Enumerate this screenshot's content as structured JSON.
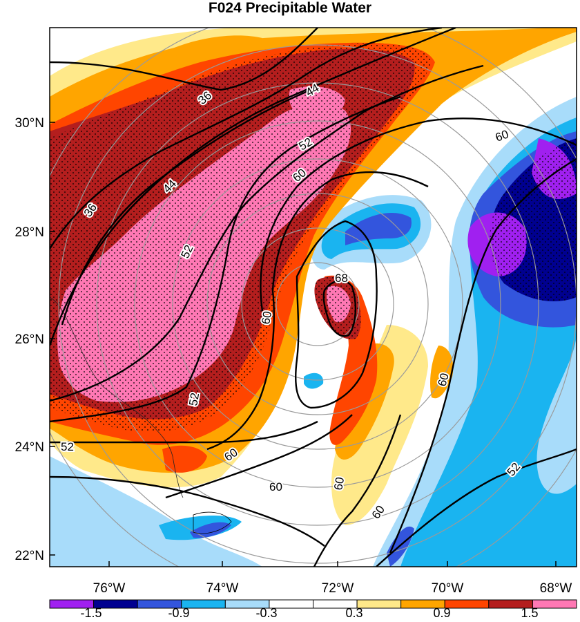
{
  "title": "F024 Precipitable Water",
  "lat_labels": [
    "30°N",
    "28°N",
    "26°N",
    "24°N",
    "22°N"
  ],
  "lon_labels": [
    "76°W",
    "74°W",
    "72°W",
    "70°W",
    "68°W"
  ],
  "contour_labels": [
    "36",
    "44",
    "52",
    "60",
    "68",
    "36",
    "44",
    "52",
    "60",
    "60",
    "60",
    "52",
    "52",
    "60",
    "60",
    "60",
    "52",
    "60"
  ],
  "colorbar": {
    "colors": [
      "#a020f0",
      "#000090",
      "#3355dd",
      "#1ab4f0",
      "#a8dcfa",
      "#ffffff",
      "#ffffff",
      "#ffe98a",
      "#ffa500",
      "#ff4500",
      "#b41e1e",
      "#ff78b4"
    ],
    "tick_labels": [
      "-1.5",
      "-0.9",
      "-0.3",
      "0.3",
      "0.9",
      "1.5"
    ]
  },
  "colors": {
    "frame": "#000000",
    "range_rings": "#9a9a9a",
    "contour": "#000000"
  }
}
